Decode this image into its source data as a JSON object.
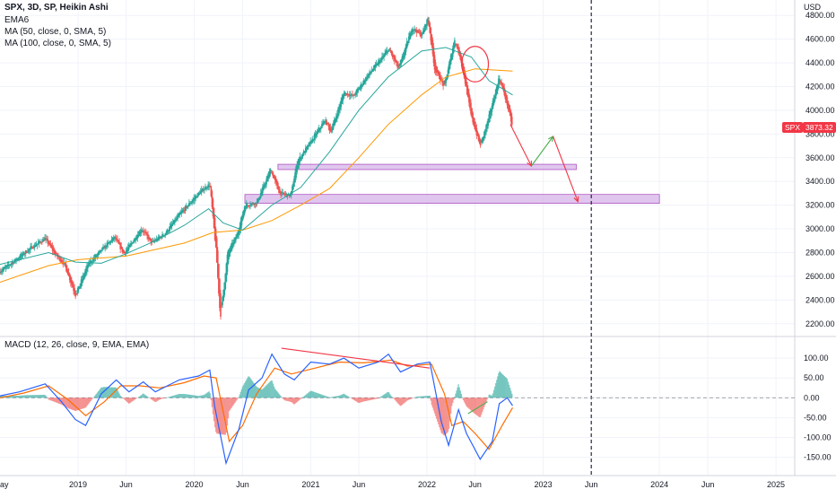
{
  "legend": {
    "title": "SPX, 3D, SP, Heikin Ashi",
    "ema": "EMA6",
    "ma50": "MA (50, close, 0, SMA, 5)",
    "ma100": "MA (100, close, 0, SMA, 5)",
    "macd": "MACD (12, 26, close, 9, EMA, EMA)"
  },
  "price_tags": {
    "symbol": "SPX",
    "last": "3873.32"
  },
  "colors": {
    "up": "#26a69a",
    "down": "#ef5350",
    "ma50": "#26a69a",
    "ma100": "#ff9800",
    "macd": "#2962ff",
    "signal": "#ff6d00",
    "zone": "#d6b3e8",
    "zone_border": "#9c27b0",
    "forecast_down": "#f23645",
    "forecast_up": "#4caf50",
    "circle": "#f23645"
  },
  "chart_data": [
    {
      "type": "candlestick",
      "name": "price",
      "unit_label": "USD",
      "ylim": [
        2130,
        4870
      ],
      "yticks": [
        2200,
        2400,
        2600,
        2800,
        3000,
        3200,
        3400,
        3600,
        3800,
        4000,
        4200,
        4400,
        4600,
        4800
      ],
      "ytick_labels": [
        "2200.00",
        "2400.00",
        "2600.00",
        "2800.00",
        "3000.00",
        "3200.00",
        "3400.00",
        "3600.00",
        "3800.00",
        "4000.00",
        "4200.00",
        "4400.00",
        "4600.00",
        "4800.00"
      ],
      "x_range": [
        "2018-05-01",
        "2025-03-01"
      ],
      "xticks": [
        "2019-01-01",
        "2019-06-01",
        "2020-01-01",
        "2020-06-01",
        "2021-01-01",
        "2021-06-01",
        "2022-01-01",
        "2022-06-01",
        "2023-01-01",
        "2023-06-01",
        "2024-01-01",
        "2024-06-01",
        "2025-01-01"
      ],
      "xtick_labels": [
        "2019",
        "Jun",
        "2020",
        "Jun",
        "2021",
        "Jun",
        "2022",
        "Jun",
        "2023",
        "Jun",
        "2024",
        "Jun",
        "2025"
      ],
      "left_edge_label": "ay",
      "close_path": [
        [
          "2018-05-01",
          2640
        ],
        [
          "2018-06-15",
          2730
        ],
        [
          "2018-08-01",
          2830
        ],
        [
          "2018-09-20",
          2920
        ],
        [
          "2018-10-20",
          2790
        ],
        [
          "2018-11-20",
          2700
        ],
        [
          "2018-12-24",
          2440
        ],
        [
          "2019-02-01",
          2700
        ],
        [
          "2019-03-15",
          2820
        ],
        [
          "2019-04-25",
          2930
        ],
        [
          "2019-05-25",
          2790
        ],
        [
          "2019-07-20",
          3000
        ],
        [
          "2019-08-20",
          2880
        ],
        [
          "2019-10-01",
          2960
        ],
        [
          "2019-11-15",
          3120
        ],
        [
          "2020-01-15",
          3300
        ],
        [
          "2020-02-19",
          3380
        ],
        [
          "2020-03-10",
          2800
        ],
        [
          "2020-03-23",
          2250
        ],
        [
          "2020-04-15",
          2800
        ],
        [
          "2020-05-15",
          2950
        ],
        [
          "2020-06-08",
          3200
        ],
        [
          "2020-07-15",
          3220
        ],
        [
          "2020-08-28",
          3500
        ],
        [
          "2020-09-25",
          3300
        ],
        [
          "2020-10-30",
          3280
        ],
        [
          "2020-11-20",
          3570
        ],
        [
          "2021-01-05",
          3750
        ],
        [
          "2021-02-15",
          3920
        ],
        [
          "2021-03-05",
          3820
        ],
        [
          "2021-04-15",
          4150
        ],
        [
          "2021-05-15",
          4120
        ],
        [
          "2021-06-30",
          4300
        ],
        [
          "2021-08-15",
          4450
        ],
        [
          "2021-09-02",
          4520
        ],
        [
          "2021-10-04",
          4350
        ],
        [
          "2021-11-15",
          4700
        ],
        [
          "2021-12-15",
          4630
        ],
        [
          "2022-01-04",
          4780
        ],
        [
          "2022-01-25",
          4350
        ],
        [
          "2022-02-24",
          4200
        ],
        [
          "2022-03-29",
          4600
        ],
        [
          "2022-04-20",
          4400
        ],
        [
          "2022-05-20",
          3950
        ],
        [
          "2022-06-17",
          3700
        ],
        [
          "2022-07-10",
          3900
        ],
        [
          "2022-08-16",
          4280
        ],
        [
          "2022-09-10",
          4050
        ],
        [
          "2022-09-27",
          3850
        ]
      ],
      "ma50": [
        [
          "2018-05-01",
          2700
        ],
        [
          "2018-10-01",
          2800
        ],
        [
          "2018-12-24",
          2720
        ],
        [
          "2019-03-15",
          2710
        ],
        [
          "2019-06-01",
          2790
        ],
        [
          "2019-09-01",
          2900
        ],
        [
          "2019-12-01",
          3030
        ],
        [
          "2020-02-15",
          3170
        ],
        [
          "2020-04-01",
          3050
        ],
        [
          "2020-06-01",
          2990
        ],
        [
          "2020-09-01",
          3200
        ],
        [
          "2020-12-01",
          3350
        ],
        [
          "2021-03-01",
          3650
        ],
        [
          "2021-06-01",
          4000
        ],
        [
          "2021-09-01",
          4280
        ],
        [
          "2021-12-15",
          4500
        ],
        [
          "2022-03-01",
          4530
        ],
        [
          "2022-05-20",
          4450
        ],
        [
          "2022-07-15",
          4250
        ],
        [
          "2022-09-27",
          4130
        ]
      ],
      "ma100": [
        [
          "2018-05-01",
          2550
        ],
        [
          "2018-10-01",
          2690
        ],
        [
          "2019-01-01",
          2740
        ],
        [
          "2019-06-01",
          2770
        ],
        [
          "2019-12-01",
          2880
        ],
        [
          "2020-03-01",
          2970
        ],
        [
          "2020-06-01",
          2990
        ],
        [
          "2020-09-01",
          3070
        ],
        [
          "2020-12-01",
          3200
        ],
        [
          "2021-03-01",
          3340
        ],
        [
          "2021-06-01",
          3600
        ],
        [
          "2021-09-01",
          3880
        ],
        [
          "2021-12-15",
          4130
        ],
        [
          "2022-03-01",
          4280
        ],
        [
          "2022-06-01",
          4350
        ],
        [
          "2022-09-27",
          4330
        ]
      ],
      "support_zones": [
        {
          "x0": "2020-09-20",
          "x1": "2023-04-15",
          "y0": 3500,
          "y1": 3545
        },
        {
          "x0": "2020-06-08",
          "x1": "2024-01-01",
          "y0": 3215,
          "y1": 3290
        }
      ],
      "forecast_lines": [
        {
          "kind": "down",
          "points": [
            [
              "2022-09-20",
              3880
            ],
            [
              "2022-11-25",
              3530
            ]
          ]
        },
        {
          "kind": "up",
          "points": [
            [
              "2022-11-25",
              3530
            ],
            [
              "2023-02-01",
              3780
            ]
          ]
        },
        {
          "kind": "down",
          "points": [
            [
              "2023-02-01",
              3780
            ],
            [
              "2023-04-20",
              3230
            ]
          ]
        }
      ],
      "circle": {
        "x": "2022-06-01",
        "y": 4390,
        "radius_x_days": 42,
        "radius_y_price": 150
      },
      "vertical_dashed_line": "2023-06-01"
    },
    {
      "type": "bar",
      "name": "macd",
      "ylim": [
        -185,
        132
      ],
      "yticks": [
        -150,
        -100,
        -50,
        0,
        50,
        100
      ],
      "ytick_labels": [
        "-150.00",
        "-100.00",
        "-50.00",
        "0.00",
        "50.00",
        "100.00"
      ],
      "macd_line": [
        [
          "2018-05-01",
          5
        ],
        [
          "2018-07-01",
          15
        ],
        [
          "2018-09-20",
          35
        ],
        [
          "2018-11-10",
          -10
        ],
        [
          "2018-12-24",
          -55
        ],
        [
          "2019-01-25",
          -70
        ],
        [
          "2019-03-15",
          10
        ],
        [
          "2019-05-01",
          45
        ],
        [
          "2019-06-10",
          15
        ],
        [
          "2019-07-25",
          40
        ],
        [
          "2019-09-01",
          15
        ],
        [
          "2019-11-15",
          45
        ],
        [
          "2020-01-15",
          55
        ],
        [
          "2020-02-19",
          70
        ],
        [
          "2020-03-05",
          -20
        ],
        [
          "2020-04-10",
          -165
        ],
        [
          "2020-05-20",
          -80
        ],
        [
          "2020-06-20",
          20
        ],
        [
          "2020-08-01",
          50
        ],
        [
          "2020-09-01",
          110
        ],
        [
          "2020-10-10",
          60
        ],
        [
          "2020-11-10",
          45
        ],
        [
          "2021-01-01",
          90
        ],
        [
          "2021-03-01",
          85
        ],
        [
          "2021-04-15",
          100
        ],
        [
          "2021-06-01",
          75
        ],
        [
          "2021-08-01",
          90
        ],
        [
          "2021-09-02",
          110
        ],
        [
          "2021-10-10",
          65
        ],
        [
          "2021-12-01",
          85
        ],
        [
          "2022-01-10",
          90
        ],
        [
          "2022-02-15",
          -60
        ],
        [
          "2022-03-10",
          -120
        ],
        [
          "2022-04-10",
          -30
        ],
        [
          "2022-05-05",
          -90
        ],
        [
          "2022-06-17",
          -155
        ],
        [
          "2022-07-25",
          -110
        ],
        [
          "2022-08-16",
          -15
        ],
        [
          "2022-09-10",
          0
        ],
        [
          "2022-09-27",
          -20
        ]
      ],
      "signal_line": [
        [
          "2018-05-01",
          0
        ],
        [
          "2018-07-15",
          12
        ],
        [
          "2018-10-01",
          30
        ],
        [
          "2018-12-01",
          -5
        ],
        [
          "2019-01-25",
          -45
        ],
        [
          "2019-03-25",
          -10
        ],
        [
          "2019-05-15",
          30
        ],
        [
          "2019-07-15",
          30
        ],
        [
          "2019-09-15",
          25
        ],
        [
          "2019-12-01",
          38
        ],
        [
          "2020-02-01",
          55
        ],
        [
          "2020-03-10",
          50
        ],
        [
          "2020-04-20",
          -110
        ],
        [
          "2020-06-01",
          -70
        ],
        [
          "2020-07-15",
          10
        ],
        [
          "2020-09-10",
          75
        ],
        [
          "2020-11-01",
          60
        ],
        [
          "2021-01-15",
          75
        ],
        [
          "2021-04-01",
          90
        ],
        [
          "2021-06-15",
          88
        ],
        [
          "2021-09-10",
          95
        ],
        [
          "2021-11-01",
          80
        ],
        [
          "2022-01-15",
          85
        ],
        [
          "2022-02-25",
          10
        ],
        [
          "2022-03-20",
          -70
        ],
        [
          "2022-04-25",
          -60
        ],
        [
          "2022-06-01",
          -90
        ],
        [
          "2022-07-15",
          -130
        ],
        [
          "2022-08-25",
          -70
        ],
        [
          "2022-09-27",
          -25
        ]
      ],
      "trend_lines": [
        {
          "kind": "down",
          "points": [
            [
              "2020-10-01",
              125
            ],
            [
              "2022-01-10",
              75
            ]
          ]
        },
        {
          "kind": "up",
          "points": [
            [
              "2022-05-10",
              -40
            ],
            [
              "2022-07-10",
              -10
            ]
          ]
        }
      ],
      "zero_line": 0
    }
  ]
}
